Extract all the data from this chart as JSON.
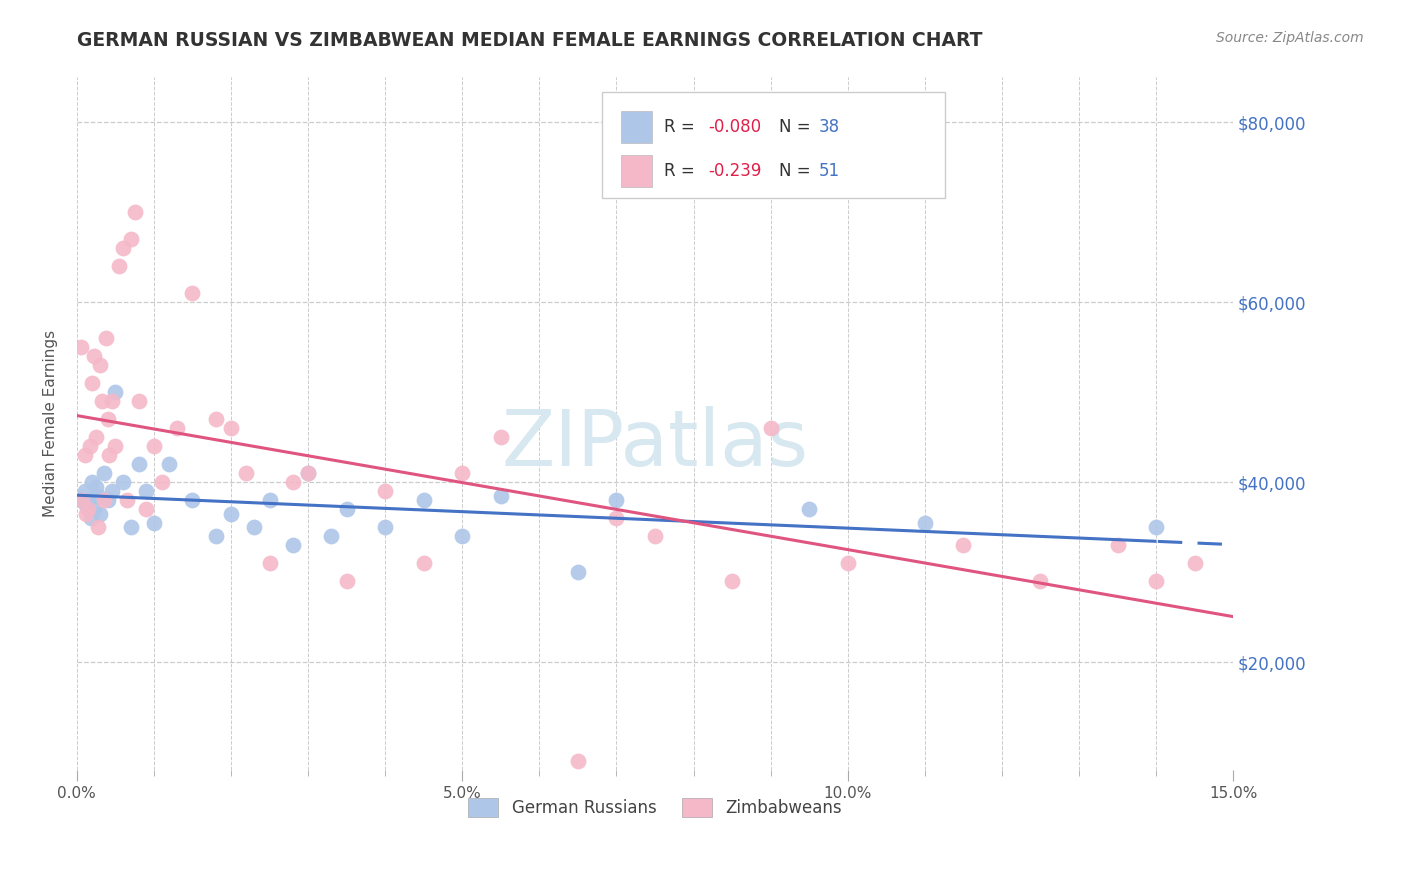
{
  "title": "GERMAN RUSSIAN VS ZIMBABWEAN MEDIAN FEMALE EARNINGS CORRELATION CHART",
  "source": "Source: ZipAtlas.com",
  "ylabel": "Median Female Earnings",
  "yticks_labels": [
    "$20,000",
    "$40,000",
    "$60,000",
    "$80,000"
  ],
  "yticks_vals": [
    20000,
    40000,
    60000,
    80000
  ],
  "xlim": [
    0.0,
    15.0
  ],
  "ylim": [
    8000,
    85000
  ],
  "legend_bottom_1": "German Russians",
  "legend_bottom_2": "Zimbabweans",
  "R_blue": -0.08,
  "N_blue": 38,
  "R_pink": -0.239,
  "N_pink": 51,
  "color_blue": "#aec6e8",
  "color_pink": "#f4b8c8",
  "color_blue_line": "#4472c4",
  "color_pink_line": "#e05580",
  "color_title": "#333333",
  "color_source": "#888888",
  "color_right_axis": "#4472c4",
  "color_legend_R": "#e0204a",
  "color_legend_N": "#4472c4",
  "background_color": "#ffffff",
  "grid_color": "#cccccc",
  "watermark_color": "#d8e8f0",
  "german_russian_x": [
    0.05,
    0.1,
    0.12,
    0.15,
    0.18,
    0.2,
    0.22,
    0.25,
    0.28,
    0.3,
    0.35,
    0.4,
    0.45,
    0.5,
    0.6,
    0.7,
    0.8,
    0.9,
    1.0,
    1.2,
    1.5,
    1.8,
    2.0,
    2.3,
    2.5,
    2.8,
    3.0,
    3.3,
    3.5,
    4.0,
    4.5,
    5.0,
    5.5,
    6.5,
    7.0,
    9.5,
    11.0,
    14.0
  ],
  "german_russian_y": [
    38000,
    39000,
    37500,
    38000,
    36000,
    40000,
    37000,
    39500,
    38500,
    36500,
    41000,
    38000,
    39000,
    50000,
    40000,
    35000,
    42000,
    39000,
    35500,
    42000,
    38000,
    34000,
    36500,
    35000,
    38000,
    33000,
    41000,
    34000,
    37000,
    35000,
    38000,
    34000,
    38500,
    30000,
    38000,
    37000,
    35500,
    35000
  ],
  "zimbabwean_x": [
    0.05,
    0.07,
    0.1,
    0.12,
    0.15,
    0.17,
    0.2,
    0.22,
    0.25,
    0.28,
    0.3,
    0.32,
    0.35,
    0.38,
    0.4,
    0.42,
    0.45,
    0.5,
    0.55,
    0.6,
    0.65,
    0.7,
    0.75,
    0.8,
    0.9,
    1.0,
    1.1,
    1.3,
    1.5,
    1.8,
    2.0,
    2.2,
    2.5,
    2.8,
    3.0,
    3.5,
    4.0,
    4.5,
    5.0,
    5.5,
    6.5,
    7.0,
    7.5,
    8.5,
    9.0,
    10.0,
    11.5,
    12.5,
    13.5,
    14.0,
    14.5
  ],
  "zimbabwean_y": [
    55000,
    38000,
    43000,
    36500,
    37000,
    44000,
    51000,
    54000,
    45000,
    35000,
    53000,
    49000,
    38000,
    56000,
    47000,
    43000,
    49000,
    44000,
    64000,
    66000,
    38000,
    67000,
    70000,
    49000,
    37000,
    44000,
    40000,
    46000,
    61000,
    47000,
    46000,
    41000,
    31000,
    40000,
    41000,
    29000,
    39000,
    31000,
    41000,
    45000,
    9000,
    36000,
    34000,
    29000,
    46000,
    31000,
    33000,
    29000,
    33000,
    29000,
    31000
  ]
}
